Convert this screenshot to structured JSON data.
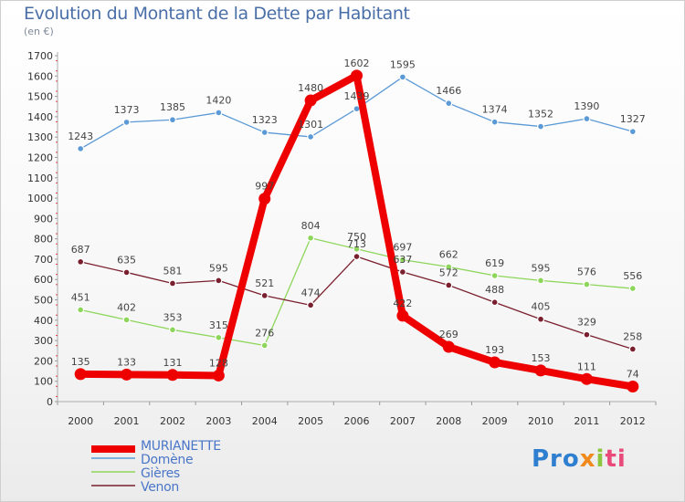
{
  "title": "Evolution du Montant de la Dette par Habitant",
  "subtitle": "(en €)",
  "logo_text": "Proxiti",
  "chart_data": {
    "type": "line",
    "x": [
      "2000",
      "2001",
      "2002",
      "2003",
      "2004",
      "2005",
      "2006",
      "2007",
      "2008",
      "2009",
      "2010",
      "2011",
      "2012"
    ],
    "ylim": [
      0,
      1700
    ],
    "yticks": [
      0,
      100,
      200,
      300,
      400,
      500,
      600,
      700,
      800,
      900,
      1000,
      1100,
      1200,
      1300,
      1400,
      1500,
      1600,
      1700
    ],
    "grid": false,
    "legend_position": "bottom-left",
    "series": [
      {
        "name": "MURIANETTE",
        "color": "#ee0000",
        "values": [
          135,
          133,
          131,
          128,
          997,
          1480,
          1602,
          422,
          269,
          193,
          153,
          111,
          74
        ],
        "labels": [
          "135",
          "133",
          "131",
          "128",
          "997",
          "1480",
          "1602",
          "422",
          "269",
          "193",
          "153",
          "111",
          "74"
        ]
      },
      {
        "name": "Domène",
        "color": "#5b9ad6",
        "values": [
          1243,
          1373,
          1385,
          1420,
          1323,
          1301,
          1439,
          1595,
          1466,
          1374,
          1352,
          1390,
          1327
        ],
        "labels": [
          "1243",
          "1373",
          "1385",
          "1420",
          "1323",
          "1301",
          "1439",
          "1595",
          "1466",
          "1374",
          "1352",
          "1390",
          "1327"
        ]
      },
      {
        "name": "Gières",
        "color": "#8ed65b",
        "values": [
          451,
          402,
          353,
          315,
          276,
          804,
          750,
          697,
          662,
          619,
          595,
          576,
          556
        ],
        "labels": [
          "451",
          "402",
          "353",
          "315",
          "276",
          "804",
          "750",
          "697",
          "662",
          "619",
          "595",
          "576",
          "556"
        ]
      },
      {
        "name": "Venon",
        "color": "#7a1f2e",
        "values": [
          687,
          635,
          581,
          595,
          521,
          474,
          713,
          637,
          572,
          488,
          405,
          329,
          258
        ],
        "labels": [
          "687",
          "635",
          "581",
          "595",
          "521",
          "474",
          "713",
          "637",
          "572",
          "488",
          "405",
          "329",
          "258"
        ]
      }
    ]
  }
}
